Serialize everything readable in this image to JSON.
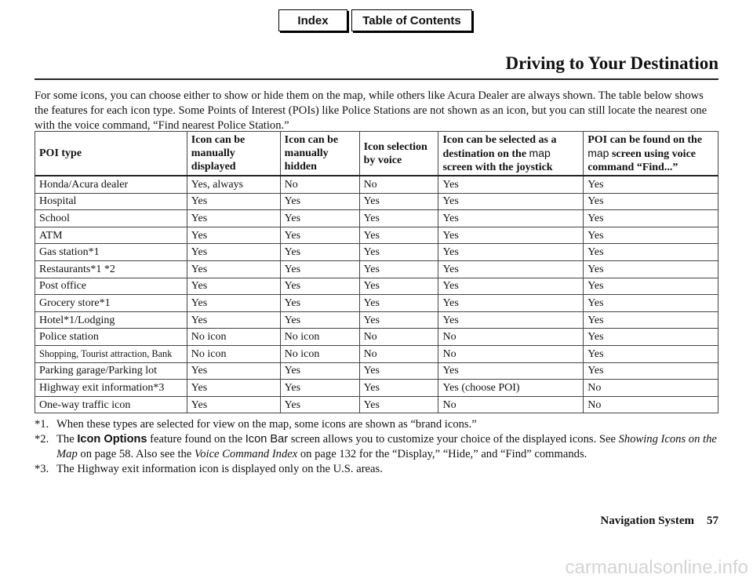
{
  "nav": {
    "index_label": "Index",
    "toc_label": "Table of Contents"
  },
  "header": {
    "title": "Driving to Your Destination"
  },
  "intro": "For some icons, you can choose either to show or hide them on the map, while others like Acura Dealer are always shown. The table below shows the features for each icon type. Some Points of Interest (POIs) like Police Stations are not shown as an icon, but you can still locate the nearest one with the voice command, “Find nearest Police Station.”",
  "table": {
    "headers": {
      "h0": "POI type",
      "h1": "Icon can be manually displayed",
      "h2": "Icon can be manually hidden",
      "h3": "Icon selection by voice",
      "h4a": "Icon can be selected as a destination on the ",
      "h4b": "map",
      "h4c": " screen with the joystick",
      "h5a": "POI can be found on the ",
      "h5b": "map",
      "h5c": " screen using voice command “Find...”"
    },
    "rows": [
      [
        "Honda/Acura dealer",
        "Yes, always",
        "No",
        "No",
        "Yes",
        "Yes"
      ],
      [
        "Hospital",
        "Yes",
        "Yes",
        "Yes",
        "Yes",
        "Yes"
      ],
      [
        "School",
        "Yes",
        "Yes",
        "Yes",
        "Yes",
        "Yes"
      ],
      [
        "ATM",
        "Yes",
        "Yes",
        "Yes",
        "Yes",
        "Yes"
      ],
      [
        "Gas station*1",
        "Yes",
        "Yes",
        "Yes",
        "Yes",
        "Yes"
      ],
      [
        "Restaurants*1 *2",
        "Yes",
        "Yes",
        "Yes",
        "Yes",
        "Yes"
      ],
      [
        "Post office",
        "Yes",
        "Yes",
        "Yes",
        "Yes",
        "Yes"
      ],
      [
        "Grocery store*1",
        "Yes",
        "Yes",
        "Yes",
        "Yes",
        "Yes"
      ],
      [
        "Hotel*1/Lodging",
        "Yes",
        "Yes",
        "Yes",
        "Yes",
        "Yes"
      ],
      [
        "Police station",
        "No icon",
        "No icon",
        "No",
        "No",
        "Yes"
      ],
      [
        "Shopping, Tourist attraction, Bank",
        "No icon",
        "No icon",
        "No",
        "No",
        "Yes"
      ],
      [
        "Parking garage/Parking lot",
        "Yes",
        "Yes",
        "Yes",
        "Yes",
        "Yes"
      ],
      [
        "Highway exit information*3",
        "Yes",
        "Yes",
        "Yes",
        "Yes (choose POI)",
        "No"
      ],
      [
        "One-way traffic icon",
        "Yes",
        "Yes",
        "Yes",
        "No",
        "No"
      ]
    ]
  },
  "notes": {
    "n1_mark": "*1.",
    "n1": "When these types are selected for view on the map, some icons are shown as “brand icons.”",
    "n2_mark": "*2.",
    "n2": {
      "a": "The ",
      "b": "Icon Options",
      "c": " feature found on the ",
      "d": "Icon Bar",
      "e": " screen allows you to customize your choice of the displayed icons. See ",
      "f": "Showing Icons on the Map",
      "g": " on page 58. Also see the ",
      "h": "Voice Command Index",
      "i": " on page 132 for the “Display,” “Hide,” and “Find” commands."
    },
    "n3_mark": "*3.",
    "n3": "The Highway exit information icon is displayed only on the U.S. areas."
  },
  "footer": {
    "section": "Navigation System",
    "page": "57"
  },
  "watermark": "carmanualsonline.info"
}
